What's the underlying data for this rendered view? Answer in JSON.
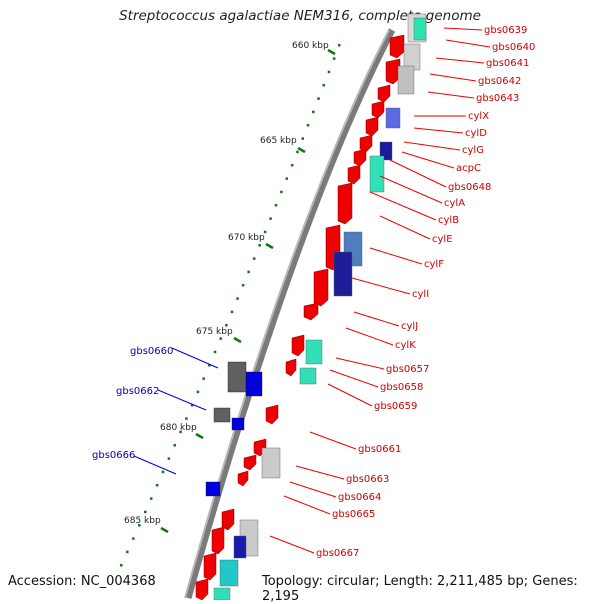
{
  "title": "Streptococcus agalactiae NEM316, complete genome",
  "accession": "Accession: NC_004368",
  "summary": "Topology: circular; Length: 2,211,485 bp; Genes: 2,195",
  "colors": {
    "forward_gene": "#ee0000",
    "reverse_gene": "#0000dd",
    "ruler_tick": "#117711",
    "backbone": "#777777",
    "label_red": "#cc0000",
    "label_blue": "#0000bb"
  },
  "ruler": [
    "660 kbp",
    "665 kbp",
    "670 kbp",
    "675 kbp",
    "680 kbp",
    "685 kbp"
  ],
  "right_labels": [
    "gbs0639",
    "gbs0640",
    "gbs0641",
    "gbs0642",
    "gbs0643",
    "cylX",
    "cylD",
    "cylG",
    "acpC",
    "gbs0648",
    "cylA",
    "cylB",
    "cylE",
    "cylF",
    "cylI",
    "cylJ",
    "cylK",
    "gbs0657",
    "gbs0658",
    "gbs0659",
    "gbs0661",
    "gbs0663",
    "gbs0664",
    "gbs0665",
    "gbs0667"
  ],
  "left_labels": [
    "gbs0660",
    "gbs0662",
    "gbs0666"
  ]
}
